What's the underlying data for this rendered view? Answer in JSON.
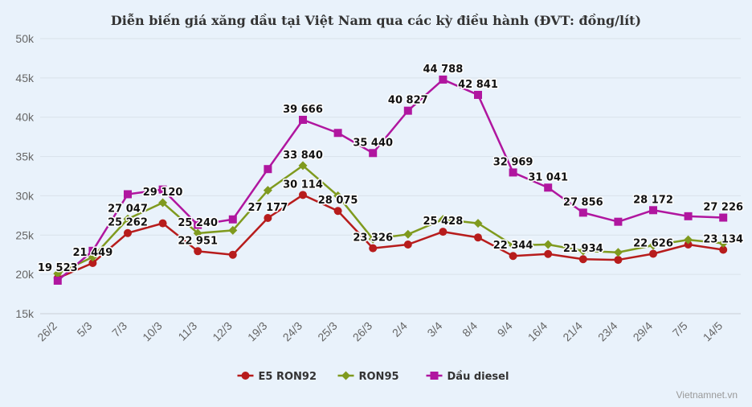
{
  "chart_data": {
    "type": "line",
    "title": "Diễn biến giá xăng dầu tại Việt Nam qua các kỳ điều hành (ĐVT: đồng/lít)",
    "xlabel": "",
    "ylabel": "",
    "categories": [
      "26/2",
      "5/3",
      "7/3",
      "10/3",
      "11/3",
      "12/3",
      "19/3",
      "24/3",
      "25/3",
      "26/3",
      "2/4",
      "3/4",
      "8/4",
      "9/4",
      "16/4",
      "21/4",
      "23/4",
      "29/4",
      "7/5",
      "14/5"
    ],
    "ylim": [
      15000,
      50000
    ],
    "yticks": [
      15000,
      20000,
      25000,
      30000,
      35000,
      40000,
      45000,
      50000
    ],
    "ytick_labels": [
      "15k",
      "20k",
      "25k",
      "30k",
      "35k",
      "40k",
      "45k",
      "50k"
    ],
    "grid": true,
    "legend_position": "bottom-center",
    "series": [
      {
        "name": "E5 RON92",
        "color": "#b71c1c",
        "marker": "circle",
        "values": [
          19523,
          21449,
          25262,
          26500,
          22951,
          22500,
          27177,
          30114,
          28075,
          23326,
          23800,
          25428,
          24700,
          22344,
          22600,
          21934,
          21850,
          22626,
          23800,
          23134
        ],
        "labels": [
          "19 523",
          "21 449",
          "25 262",
          null,
          "22 951",
          null,
          "27 177",
          "30 114",
          "28 075",
          "23 326",
          null,
          "25 428",
          null,
          "22 344",
          null,
          "21 934",
          null,
          "22 626",
          null,
          "23 134"
        ]
      },
      {
        "name": "RON95",
        "color": "#7f9a1e",
        "marker": "diamond",
        "values": [
          20100,
          22200,
          27047,
          29120,
          25240,
          25600,
          30700,
          33840,
          30000,
          24500,
          25100,
          27000,
          26500,
          23700,
          23800,
          23000,
          22800,
          23700,
          24400,
          23950
        ],
        "labels": [
          null,
          null,
          "27 047",
          "29 120",
          "25 240",
          null,
          null,
          "33 840",
          null,
          null,
          null,
          null,
          null,
          null,
          null,
          null,
          null,
          null,
          null,
          null
        ]
      },
      {
        "name": "Dầu diesel",
        "color": "#b0169f",
        "marker": "square",
        "values": [
          19200,
          23000,
          30200,
          30800,
          26300,
          27000,
          33400,
          39666,
          38000,
          35440,
          40827,
          44788,
          42841,
          32969,
          31041,
          27856,
          26700,
          28172,
          27400,
          27226
        ],
        "labels": [
          null,
          null,
          null,
          null,
          null,
          null,
          null,
          "39 666",
          null,
          "35 440",
          "40 827",
          "44 788",
          "42 841",
          "32 969",
          "31 041",
          "27 856",
          null,
          "28 172",
          null,
          "27 226"
        ]
      }
    ]
  },
  "credit": "Vietnamnet.vn"
}
